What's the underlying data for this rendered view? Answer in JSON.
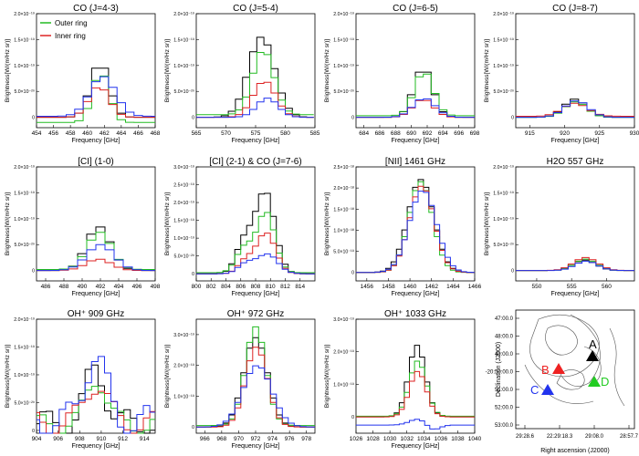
{
  "figure": {
    "ylabel": "Brightness[W/(m²Hz sr)]",
    "xlabel": "Frequency [GHz]",
    "colors": {
      "black": "#000000",
      "outer": "#22bb22",
      "inner": "#dd2222",
      "blue": "#2233ee"
    }
  },
  "chart_data": [
    {
      "type": "line",
      "title": "CO (J=4-3)",
      "xlabel": "Frequency [GHz]",
      "ylabel": "Brightness[W/(m²Hz sr)]",
      "xlim": [
        454,
        468
      ],
      "ylim": [
        -2e-20,
        2e-19
      ],
      "step": 1.0,
      "xticks": [
        454,
        456,
        458,
        460,
        462,
        464,
        466,
        468
      ],
      "yticks": [
        {
          "v": 0,
          "l": "0"
        },
        {
          "v": 5e-20,
          "l": "5.0×10⁻²⁰"
        },
        {
          "v": 1e-19,
          "l": "1.0×10⁻¹⁹"
        },
        {
          "v": 1.5e-19,
          "l": "1.5×10⁻¹⁹"
        },
        {
          "v": 2e-19,
          "l": "2.0×10⁻¹⁹"
        }
      ],
      "legend": [
        {
          "name": "Outer ring",
          "color": "#22bb22"
        },
        {
          "name": "Inner ring",
          "color": "#dd2222"
        }
      ],
      "series": [
        {
          "color": "#000000",
          "center": 461.5,
          "width": 1.1,
          "amp": 1.05e-19,
          "base": 0
        },
        {
          "color": "#22bb22",
          "center": 461.6,
          "width": 1.0,
          "amp": 9.7e-20,
          "base": -1e-20
        },
        {
          "color": "#dd2222",
          "center": 461.4,
          "width": 1.2,
          "amp": 6e-20,
          "base": 0
        },
        {
          "color": "#2233ee",
          "center": 461.8,
          "width": 1.5,
          "amp": 7.7e-20,
          "base": 2e-21
        }
      ]
    },
    {
      "type": "line",
      "title": "CO (J=5-4)",
      "xlabel": "Frequency [GHz]",
      "ylabel": "Brightness[W/(m²Hz sr)]",
      "xlim": [
        565,
        585
      ],
      "ylim": [
        -2e-20,
        2e-19
      ],
      "step": 1.2,
      "xticks": [
        565,
        570,
        575,
        580,
        585
      ],
      "yticks": [
        {
          "v": 0,
          "l": "0"
        },
        {
          "v": 5e-20,
          "l": "5.0×10⁻²⁰"
        },
        {
          "v": 1e-19,
          "l": "1.0×10⁻¹⁹"
        },
        {
          "v": 1.5e-19,
          "l": "1.5×10⁻¹⁹"
        },
        {
          "v": 2e-19,
          "l": "2.0×10⁻¹⁹"
        }
      ],
      "series": [
        {
          "color": "#000000",
          "center": 576,
          "width": 2.2,
          "amp": 1.55e-19,
          "base": 0
        },
        {
          "color": "#22bb22",
          "center": 576.3,
          "width": 1.8,
          "amp": 1.25e-19,
          "base": 5e-21
        },
        {
          "color": "#dd2222",
          "center": 576.5,
          "width": 1.9,
          "amp": 7e-20,
          "base": 0
        },
        {
          "color": "#2233ee",
          "center": 577,
          "width": 1.8,
          "amp": 3.7e-20,
          "base": 0
        }
      ]
    },
    {
      "type": "line",
      "title": "CO (J=6-5)",
      "xlabel": "Frequency [GHz]",
      "ylabel": "Brightness[W/(m²Hz sr)]",
      "xlim": [
        683,
        698
      ],
      "ylim": [
        -2e-20,
        2e-19
      ],
      "step": 1.0,
      "xticks": [
        684,
        686,
        688,
        690,
        692,
        694,
        696,
        698
      ],
      "yticks": [
        {
          "v": 0,
          "l": "0"
        },
        {
          "v": 5e-20,
          "l": "5.0×10⁻²⁰"
        },
        {
          "v": 1e-19,
          "l": "1.0×10⁻¹⁹"
        },
        {
          "v": 1.5e-19,
          "l": "1.5×10⁻¹⁹"
        },
        {
          "v": 2e-19,
          "l": "2.0×10⁻¹⁹"
        }
      ],
      "series": [
        {
          "color": "#000000",
          "center": 691.5,
          "width": 1.2,
          "amp": 9.5e-20,
          "base": 0
        },
        {
          "color": "#22bb22",
          "center": 691.6,
          "width": 1.2,
          "amp": 8.5e-20,
          "base": 3e-21
        },
        {
          "color": "#dd2222",
          "center": 691.5,
          "width": 1.3,
          "amp": 3.5e-20,
          "base": 0
        },
        {
          "color": "#2233ee",
          "center": 691.6,
          "width": 1.4,
          "amp": 3.7e-20,
          "base": 0
        }
      ]
    },
    {
      "type": "line",
      "title": "CO (J=8-7)",
      "xlabel": "Frequency [GHz]",
      "ylabel": "Brightness[W/(m²Hz sr)]",
      "xlim": [
        913,
        930
      ],
      "ylim": [
        -2e-20,
        2e-19
      ],
      "step": 1.2,
      "xticks": [
        915,
        920,
        925,
        930
      ],
      "yticks": [
        {
          "v": 0,
          "l": "0"
        },
        {
          "v": 5e-20,
          "l": "5.0×10⁻²⁰"
        },
        {
          "v": 1e-19,
          "l": "1.0×10⁻¹⁹"
        },
        {
          "v": 1.5e-19,
          "l": "1.5×10⁻¹⁹"
        },
        {
          "v": 2e-19,
          "l": "2.0×10⁻¹⁹"
        }
      ],
      "series": [
        {
          "color": "#000000",
          "center": 921.5,
          "width": 1.6,
          "amp": 3.5e-20,
          "base": 0
        },
        {
          "color": "#22bb22",
          "center": 921.6,
          "width": 1.6,
          "amp": 3e-20,
          "base": 0
        },
        {
          "color": "#dd2222",
          "center": 921.5,
          "width": 1.8,
          "amp": 2.5e-20,
          "base": 2e-21
        },
        {
          "color": "#2233ee",
          "center": 921.7,
          "width": 1.7,
          "amp": 3.2e-20,
          "base": 0
        }
      ]
    },
    {
      "type": "line",
      "title": "[CI] (1-0)",
      "xlabel": "Frequency [GHz]",
      "ylabel": "Brightness[W/(m²Hz sr)]",
      "xlim": [
        485,
        498
      ],
      "ylim": [
        -2e-20,
        2e-19
      ],
      "step": 1.0,
      "xticks": [
        486,
        488,
        490,
        492,
        494,
        496,
        498
      ],
      "yticks": [
        {
          "v": 0,
          "l": "0"
        },
        {
          "v": 5e-20,
          "l": "5.0×10⁻²⁰"
        },
        {
          "v": 1e-19,
          "l": "1.0×10⁻¹⁹"
        },
        {
          "v": 1.5e-19,
          "l": "1.5×10⁻¹⁹"
        },
        {
          "v": 2e-19,
          "l": "2.0×10⁻¹⁹"
        }
      ],
      "series": [
        {
          "color": "#000000",
          "center": 491.8,
          "width": 1.3,
          "amp": 8.5e-20,
          "base": 0
        },
        {
          "color": "#22bb22",
          "center": 491.9,
          "width": 1.3,
          "amp": 7.2e-20,
          "base": 2e-21
        },
        {
          "color": "#dd2222",
          "center": 491.8,
          "width": 1.4,
          "amp": 2.2e-20,
          "base": 0
        },
        {
          "color": "#2233ee",
          "center": 492,
          "width": 1.5,
          "amp": 5e-20,
          "base": 0
        }
      ]
    },
    {
      "type": "line",
      "title": "[CI] (2-1) & CO (J=7-6)",
      "xlabel": "Frequency [GHz]",
      "ylabel": "Brightness[W/(m²Hz sr)]",
      "xlim": [
        800,
        816
      ],
      "ylim": [
        -2e-20,
        3e-19
      ],
      "step": 0.8,
      "xticks": [
        800,
        802,
        804,
        806,
        808,
        810,
        812,
        814
      ],
      "yticks": [
        {
          "v": 0,
          "l": "0"
        },
        {
          "v": 5e-20,
          "l": "5.0×10⁻²⁰"
        },
        {
          "v": 1e-19,
          "l": "1.0×10⁻¹⁹"
        },
        {
          "v": 1.5e-19,
          "l": "1.5×10⁻¹⁹"
        },
        {
          "v": 2e-19,
          "l": "2.0×10⁻¹⁹"
        },
        {
          "v": 2.5e-19,
          "l": "2.5×10⁻¹⁹"
        },
        {
          "v": 3e-19,
          "l": "3.0×10⁻¹⁹"
        }
      ],
      "series": [
        {
          "color": "#000000",
          "center": 809.3,
          "width": 1.3,
          "amp": 2.3e-19,
          "base": 0,
          "center2": 806.5,
          "width2": 1.1,
          "amp2": 9e-20
        },
        {
          "color": "#22bb22",
          "center": 809.4,
          "width": 1.2,
          "amp": 1.7e-19,
          "base": 3e-21,
          "center2": 806.5,
          "width2": 1.1,
          "amp2": 7e-20
        },
        {
          "color": "#dd2222",
          "center": 809.4,
          "width": 1.3,
          "amp": 1.15e-19,
          "base": 0,
          "center2": 806.6,
          "width2": 1.0,
          "amp2": 3.5e-20
        },
        {
          "color": "#2233ee",
          "center": 809.6,
          "width": 1.4,
          "amp": 5.5e-20,
          "base": 0,
          "center2": 806.7,
          "width2": 1.1,
          "amp2": 2.8e-20
        }
      ]
    },
    {
      "type": "line",
      "title": "[NII] 1461 GHz",
      "xlabel": "Frequency [GHz]",
      "ylabel": "Brightness[W/(m²Hz sr)]",
      "xlim": [
        1455,
        1466
      ],
      "ylim": [
        -2e-19,
        2.5e-18
      ],
      "step": 0.5,
      "xticks": [
        1456,
        1458,
        1460,
        1462,
        1464,
        1466
      ],
      "yticks": [
        {
          "v": 0,
          "l": "0"
        },
        {
          "v": 5e-19,
          "l": "5.0×10⁻¹⁹"
        },
        {
          "v": 1e-18,
          "l": "1.0×10⁻¹⁸"
        },
        {
          "v": 1.5e-18,
          "l": "1.5×10⁻¹⁸"
        },
        {
          "v": 2e-18,
          "l": "2.0×10⁻¹⁸"
        },
        {
          "v": 2.5e-18,
          "l": "2.5×10⁻¹⁸"
        }
      ],
      "series": [
        {
          "color": "#000000",
          "center": 1461,
          "width": 1.2,
          "amp": 2.2e-18,
          "base": 0
        },
        {
          "color": "#22bb22",
          "center": 1461,
          "width": 1.1,
          "amp": 2.15e-18,
          "base": 0
        },
        {
          "color": "#dd2222",
          "center": 1461.1,
          "width": 1.15,
          "amp": 2.05e-18,
          "base": 0
        },
        {
          "color": "#2233ee",
          "center": 1461.2,
          "width": 1.25,
          "amp": 1.95e-18,
          "base": 0
        }
      ]
    },
    {
      "type": "line",
      "title": "H2O 557 GHz",
      "xlabel": "Frequency [GHz]",
      "ylabel": "Brightness[W/(m²Hz sr)]",
      "xlim": [
        547,
        564
      ],
      "ylim": [
        -2e-20,
        2e-19
      ],
      "step": 1.0,
      "xticks": [
        550,
        555,
        560
      ],
      "yticks": [
        {
          "v": 0,
          "l": "0"
        },
        {
          "v": 5e-20,
          "l": "5.0×10⁻²⁰"
        },
        {
          "v": 1e-19,
          "l": "1.0×10⁻¹⁹"
        },
        {
          "v": 1.5e-19,
          "l": "1.5×10⁻¹⁹"
        },
        {
          "v": 2e-19,
          "l": "2.0×10⁻¹⁹"
        }
      ],
      "series": [
        {
          "color": "#000000",
          "center": 556.9,
          "width": 1.6,
          "amp": 2e-20,
          "base": 0
        },
        {
          "color": "#22bb22",
          "center": 557,
          "width": 1.6,
          "amp": 2.2e-20,
          "base": 0
        },
        {
          "color": "#dd2222",
          "center": 557,
          "width": 1.7,
          "amp": 2.5e-20,
          "base": 0
        },
        {
          "color": "#2233ee",
          "center": 557.1,
          "width": 1.6,
          "amp": 1.8e-20,
          "base": 0
        }
      ]
    },
    {
      "type": "line",
      "title": "OH⁺ 909 GHz",
      "xlabel": "Frequency [GHz]",
      "ylabel": "Brightness[W/(m²Hz sr)]",
      "xlim": [
        904,
        915
      ],
      "ylim": [
        -5e-21,
        2e-19
      ],
      "step": 0.6,
      "xticks": [
        904,
        906,
        908,
        910,
        912,
        914
      ],
      "yticks": [
        {
          "v": 0,
          "l": "0"
        },
        {
          "v": 5e-20,
          "l": "5.0×10⁻²⁰"
        },
        {
          "v": 1e-19,
          "l": "1.0×10⁻¹⁹"
        },
        {
          "v": 1.5e-19,
          "l": "1.5×10⁻¹⁹"
        },
        {
          "v": 2e-19,
          "l": "2.0×10⁻¹⁹"
        }
      ],
      "series": [
        {
          "color": "#000000",
          "center": 909.5,
          "width": 0.9,
          "amp": 1e-19,
          "base": 1.2e-20,
          "wiggle": 2.5e-20
        },
        {
          "color": "#22bb22",
          "center": 909.6,
          "width": 0.9,
          "amp": 8.5e-20,
          "base": 1e-20,
          "wiggle": 2e-20
        },
        {
          "color": "#dd2222",
          "center": 909.5,
          "width": 1.0,
          "amp": 7.5e-20,
          "base": 1.2e-20,
          "wiggle": 2.2e-20
        },
        {
          "color": "#2233ee",
          "center": 909.4,
          "width": 1.0,
          "amp": 1.2e-19,
          "base": 1.5e-20,
          "wiggle": 3e-20
        }
      ]
    },
    {
      "type": "line",
      "title": "OH⁺ 972 GHz",
      "xlabel": "Frequency [GHz]",
      "ylabel": "Brightness[W/(m²Hz sr)]",
      "xlim": [
        965,
        979
      ],
      "ylim": [
        -2e-20,
        3.5e-19
      ],
      "step": 0.7,
      "xticks": [
        966,
        968,
        970,
        972,
        974,
        976,
        978
      ],
      "yticks": [
        {
          "v": 0,
          "l": "0"
        },
        {
          "v": 1e-19,
          "l": "1.0×10⁻¹⁹"
        },
        {
          "v": 2e-19,
          "l": "2.0×10⁻¹⁹"
        },
        {
          "v": 3e-19,
          "l": "3.0×10⁻¹⁹"
        }
      ],
      "series": [
        {
          "color": "#000000",
          "center": 972,
          "width": 1.4,
          "amp": 2.9e-19,
          "base": 0
        },
        {
          "color": "#22bb22",
          "center": 972,
          "width": 1.2,
          "amp": 3.2e-19,
          "base": 5e-21
        },
        {
          "color": "#dd2222",
          "center": 972.1,
          "width": 1.3,
          "amp": 2.6e-19,
          "base": 0
        },
        {
          "color": "#2233ee",
          "center": 972.2,
          "width": 1.7,
          "amp": 2e-19,
          "base": 0
        }
      ]
    },
    {
      "type": "line",
      "title": "OH⁺ 1033 GHz",
      "xlabel": "Frequency [GHz]",
      "ylabel": "Brightness[W/(m²Hz sr)]",
      "xlim": [
        1026,
        1040
      ],
      "ylim": [
        -5e-20,
        3e-19
      ],
      "step": 0.6,
      "xticks": [
        1026,
        1028,
        1030,
        1032,
        1034,
        1036,
        1038,
        1040
      ],
      "yticks": [
        {
          "v": 0,
          "l": "0"
        },
        {
          "v": 1e-19,
          "l": "1.0×10⁻¹⁹"
        },
        {
          "v": 2e-19,
          "l": "2.0×10⁻¹⁹"
        },
        {
          "v": 3e-19,
          "l": "3.0×10⁻¹⁹"
        }
      ],
      "series": [
        {
          "color": "#000000",
          "center": 1033.2,
          "width": 1.0,
          "amp": 2.2e-19,
          "base": 0
        },
        {
          "color": "#22bb22",
          "center": 1033.3,
          "width": 1.0,
          "amp": 1.7e-19,
          "base": 2e-21
        },
        {
          "color": "#dd2222",
          "center": 1033.3,
          "width": 1.0,
          "amp": 1.4e-19,
          "base": 0
        },
        {
          "color": "#2233ee",
          "center": 1033.5,
          "width": 1.1,
          "amp": 2e-20,
          "base": -2.5e-20,
          "absorb": 2e-20
        }
      ]
    }
  ],
  "map": {
    "ylabel": "Declination (J2000)",
    "xlabel": "Right ascension (J2000)",
    "yticks": [
      "47:00.0",
      "48:00.0",
      "49:00.0",
      "-20:50:00.0",
      "51:00.0",
      "52:00.0",
      "53:00.0"
    ],
    "xticks": [
      "29:28.6",
      "22:29:18.3",
      "29:08.0",
      "28:57.7"
    ],
    "markers": [
      {
        "label": "A",
        "color": "#000000"
      },
      {
        "label": "B",
        "color": "#ee2222"
      },
      {
        "label": "C",
        "color": "#2233ee"
      },
      {
        "label": "D",
        "color": "#22cc22"
      }
    ]
  }
}
